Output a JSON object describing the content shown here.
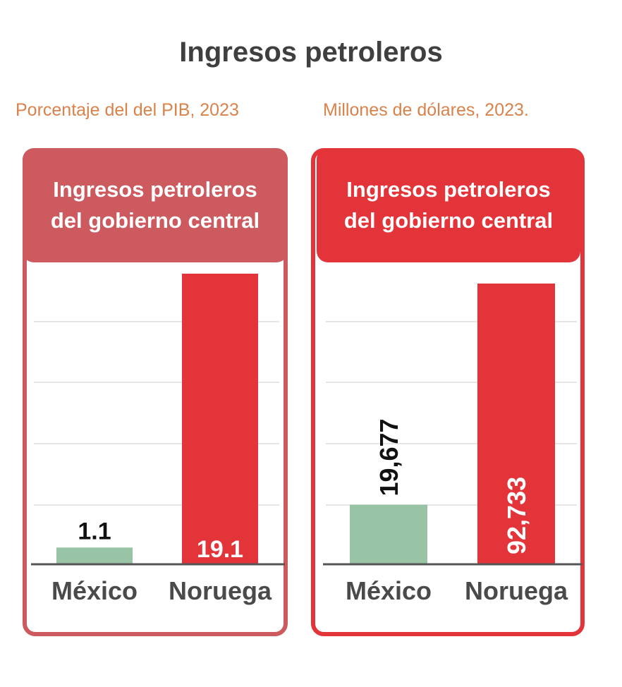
{
  "title": "Ingresos petroleros",
  "colors": {
    "title": "#3f3f3f",
    "subtitle": "#d9824b",
    "panel1": "#cc5a5e",
    "panel2": "#e3343a",
    "mexico_bar": "#98c4a5",
    "noruega_bar": "#e3343a",
    "grid": "#dddddd",
    "axis": "#555555"
  },
  "chart_data": [
    {
      "type": "bar",
      "subtitle": "Porcentaje del  del PIB, 2023",
      "header": [
        "Ingresos petroleros",
        "del gobierno central"
      ],
      "categories": [
        "México",
        "Noruega"
      ],
      "values": [
        1.1,
        19.1
      ],
      "value_labels": [
        "1.1",
        "19.1"
      ],
      "ylim": [
        0,
        19.1
      ],
      "grid": true
    },
    {
      "type": "bar",
      "subtitle": "Millones de dólares, 2023.",
      "header": [
        "Ingresos petroleros",
        "del gobierno central"
      ],
      "categories": [
        "México",
        "Noruega"
      ],
      "values": [
        19677,
        92733
      ],
      "value_labels": [
        "19,677",
        "92,733"
      ],
      "ylim": [
        0,
        92733
      ],
      "grid": true
    }
  ]
}
